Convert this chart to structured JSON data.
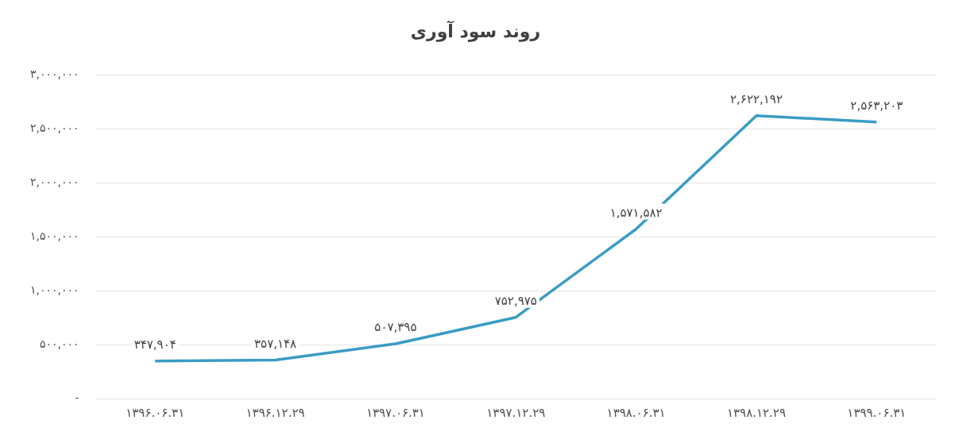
{
  "chart_data": {
    "type": "line",
    "title": "روند سود آوری",
    "categories": [
      "۱۳۹۶.۰۶.۳۱",
      "۱۳۹۶.۱۲.۲۹",
      "۱۳۹۷.۰۶.۳۱",
      "۱۳۹۷.۱۲.۲۹",
      "۱۳۹۸.۰۶.۳۱",
      "۱۳۹۸.۱۲.۲۹",
      "۱۳۹۹.۰۶.۳۱"
    ],
    "series": [
      {
        "color": "#3a9cc4",
        "values": [
          347904,
          357148,
          507395,
          752975,
          1571582,
          2622192,
          2563203
        ],
        "value_labels": [
          "۳۴۷,۹۰۴",
          "۳۵۷,۱۴۸",
          "۵۰۷,۳۹۵",
          "۷۵۲,۹۷۵",
          "۱,۵۷۱,۵۸۲",
          "۲,۶۲۲,۱۹۲",
          "۲,۵۶۳,۲۰۳"
        ]
      }
    ],
    "ylim": [
      0,
      3000000
    ],
    "yticks": [
      {
        "value": 0,
        "label": "-"
      },
      {
        "value": 500000,
        "label": "۵۰۰,۰۰۰"
      },
      {
        "value": 1000000,
        "label": "۱,۰۰۰,۰۰۰"
      },
      {
        "value": 1500000,
        "label": "۱,۵۰۰,۰۰۰"
      },
      {
        "value": 2000000,
        "label": "۲,۰۰۰,۰۰۰"
      },
      {
        "value": 2500000,
        "label": "۲,۵۰۰,۰۰۰"
      },
      {
        "value": 3000000,
        "label": "۳,۰۰۰,۰۰۰"
      }
    ],
    "grid": "y",
    "legend": false,
    "marker": "none",
    "line_style": "solid"
  }
}
